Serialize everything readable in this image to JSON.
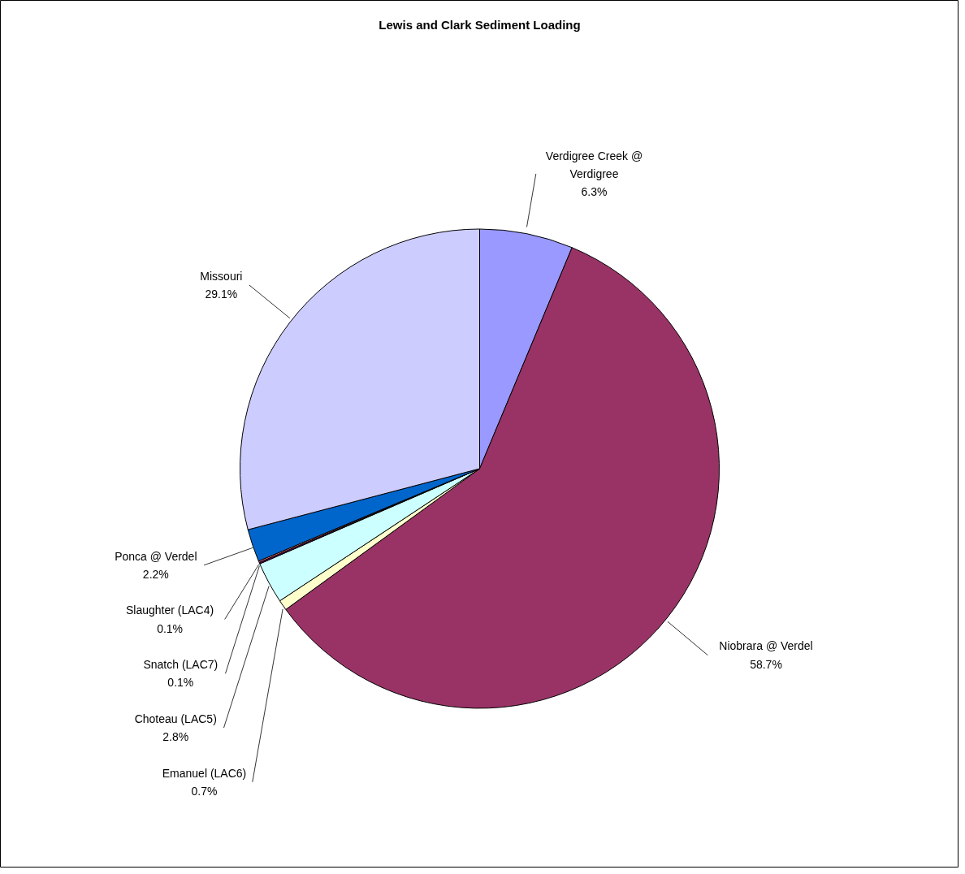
{
  "chart_data": {
    "type": "pie",
    "title": "Lewis and Clark Sediment Loading",
    "categories": [
      "Verdigree Creek @ Verdigree",
      "Niobrara @ Verdel",
      "Emanuel (LAC6)",
      "Choteau (LAC5)",
      "Snatch (LAC7)",
      "Slaughter (LAC4)",
      "Ponca @ Verdel",
      "Missouri"
    ],
    "values": [
      6.3,
      58.7,
      0.7,
      2.8,
      0.1,
      0.1,
      2.2,
      29.1
    ],
    "value_labels": [
      "6.3%",
      "58.7%",
      "0.7%",
      "2.8%",
      "0.1%",
      "0.1%",
      "2.2%",
      "29.1%"
    ],
    "colors": [
      "#9999ff",
      "#993366",
      "#ffffcc",
      "#ccffff",
      "#660066",
      "#ff8080",
      "#0066cc",
      "#ccccff"
    ]
  }
}
